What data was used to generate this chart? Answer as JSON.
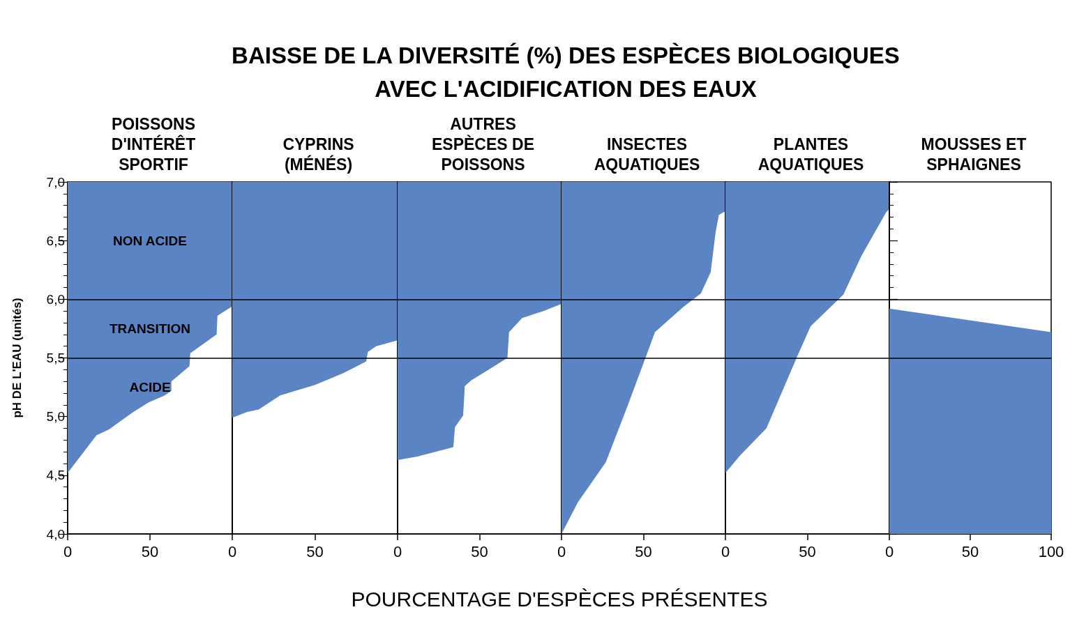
{
  "chart_data": [
    {
      "type": "other",
      "title": "BAISSE DE LA DIVERSITÉ (%) DES ESPÈCES BIOLOGIQUES\nAVEC L'ACIDIFICATION DES EAUX"
    },
    {
      "type": "area",
      "orientation": "horizontal",
      "title": "POISSONS\nD'INTÉRÊT\nSPORTIF",
      "xlabel": "POURCENTAGE D'ESPÈCES PRÉSENTES",
      "ylabel": "pH DE L'EAU (unités)",
      "xlim": [
        0,
        100
      ],
      "xticks": [
        0,
        50
      ],
      "ylim": [
        4,
        7
      ],
      "yticks": [
        {
          "value": 4,
          "label": "4,0"
        },
        {
          "value": 4.5,
          "label": "4,5"
        },
        {
          "value": 5,
          "label": "5,0"
        },
        {
          "value": 5.5,
          "label": "5,5"
        },
        {
          "value": 6,
          "label": "6,0"
        },
        {
          "value": 6.5,
          "label": "6,5"
        },
        {
          "value": 7,
          "label": "7,0"
        }
      ],
      "ref_lines": [
        {
          "axis": "y",
          "value": 6
        },
        {
          "axis": "y",
          "value": 5.5
        }
      ],
      "annotations": [
        "NON ACIDE",
        "TRANSITION",
        "ACIDE"
      ],
      "series": [
        {
          "color": "#5b84c5",
          "x": [
            4.0,
            4.52,
            4.84,
            4.89,
            5.03,
            5.12,
            5.18,
            5.22,
            5.3,
            5.43,
            5.54,
            5.7,
            5.86,
            5.94,
            7.0
          ],
          "values": [
            0,
            0,
            17.5,
            25,
            39,
            49,
            59,
            63,
            63,
            74,
            74.5,
            90.5,
            91,
            100,
            100
          ]
        }
      ]
    },
    {
      "type": "area",
      "orientation": "horizontal",
      "title": "CYPRINS\n(MÉNÉS)",
      "tick_labels": "x",
      "xlim": [
        0,
        100
      ],
      "xticks": [
        0,
        50
      ],
      "ylim": [
        4,
        7
      ],
      "ref_lines": [
        {
          "axis": "y",
          "value": 6
        },
        {
          "axis": "y",
          "value": 5.5
        }
      ],
      "series": [
        {
          "color": "#5b84c5",
          "x": [
            4.0,
            4.99,
            5.04,
            5.06,
            5.18,
            5.27,
            5.37,
            5.47,
            5.55,
            5.6,
            5.65,
            7.0
          ],
          "values": [
            0,
            0,
            9,
            16,
            29,
            50,
            67,
            81,
            82,
            87,
            100,
            100
          ]
        }
      ]
    },
    {
      "type": "area",
      "orientation": "horizontal",
      "title": "AUTRES\nESPÈCES DE\nPOISSONS",
      "tick_labels": "x",
      "xlim": [
        0,
        100
      ],
      "xticks": [
        0,
        50
      ],
      "ylim": [
        4,
        7
      ],
      "ref_lines": [
        {
          "axis": "y",
          "value": 6
        },
        {
          "axis": "y",
          "value": 5.5
        }
      ],
      "series": [
        {
          "color": "#5b84c5",
          "x": [
            4.0,
            4.63,
            4.66,
            4.74,
            4.91,
            5.01,
            5.26,
            5.31,
            5.37,
            5.5,
            5.72,
            5.84,
            5.9,
            5.96,
            7.0
          ],
          "values": [
            0,
            0,
            12,
            34,
            35,
            40,
            41,
            45,
            52,
            67,
            68,
            76,
            89,
            100,
            100
          ]
        }
      ]
    },
    {
      "type": "area",
      "orientation": "horizontal",
      "title": "INSECTES\nAQUATIQUES",
      "tick_labels": "x",
      "xlim": [
        0,
        100
      ],
      "xticks": [
        0,
        50
      ],
      "ylim": [
        4,
        7
      ],
      "ref_lines": [
        {
          "axis": "y",
          "value": 6
        },
        {
          "axis": "y",
          "value": 5.5
        }
      ],
      "series": [
        {
          "color": "#5b84c5",
          "x": [
            4.0,
            4.27,
            4.61,
            5.08,
            5.53,
            5.72,
            5.93,
            6.05,
            6.23,
            6.57,
            6.72,
            6.75,
            7.0
          ],
          "values": [
            0,
            10,
            27,
            40,
            52,
            57,
            74,
            85,
            91,
            94,
            96,
            100,
            100
          ]
        }
      ]
    },
    {
      "type": "area",
      "orientation": "horizontal",
      "title": "PLANTES\nAQUATIQUES",
      "tick_labels": "x",
      "xlim": [
        0,
        100
      ],
      "xticks": [
        0,
        50
      ],
      "ylim": [
        4,
        7
      ],
      "ref_lines": [
        {
          "axis": "y",
          "value": 6
        },
        {
          "axis": "y",
          "value": 5.5
        }
      ],
      "series": [
        {
          "color": "#5b84c5",
          "x": [
            4.0,
            4.52,
            4.67,
            4.9,
            5.52,
            5.77,
            6.04,
            6.37,
            6.74,
            6.77,
            7.0
          ],
          "values": [
            0,
            0,
            9,
            25,
            44,
            52,
            72,
            83,
            98,
            100,
            100
          ]
        }
      ]
    },
    {
      "type": "area",
      "orientation": "horizontal",
      "title": "MOUSSES ET\nSPHAIGNES",
      "tick_labels": "x",
      "xlim": [
        0,
        100
      ],
      "xticks": [
        0,
        50,
        100
      ],
      "ylim": [
        4,
        7
      ],
      "yticks": [
        4,
        4.5,
        5,
        5.5,
        6,
        6.5,
        7
      ],
      "ref_lines": [
        {
          "axis": "y",
          "value": 6
        },
        {
          "axis": "y",
          "value": 5.5
        }
      ],
      "series": [
        {
          "color": "#5b84c5",
          "x": [
            4.0,
            5.72,
            5.92,
            7.0
          ],
          "values": [
            100,
            100,
            0,
            0
          ]
        }
      ]
    }
  ]
}
